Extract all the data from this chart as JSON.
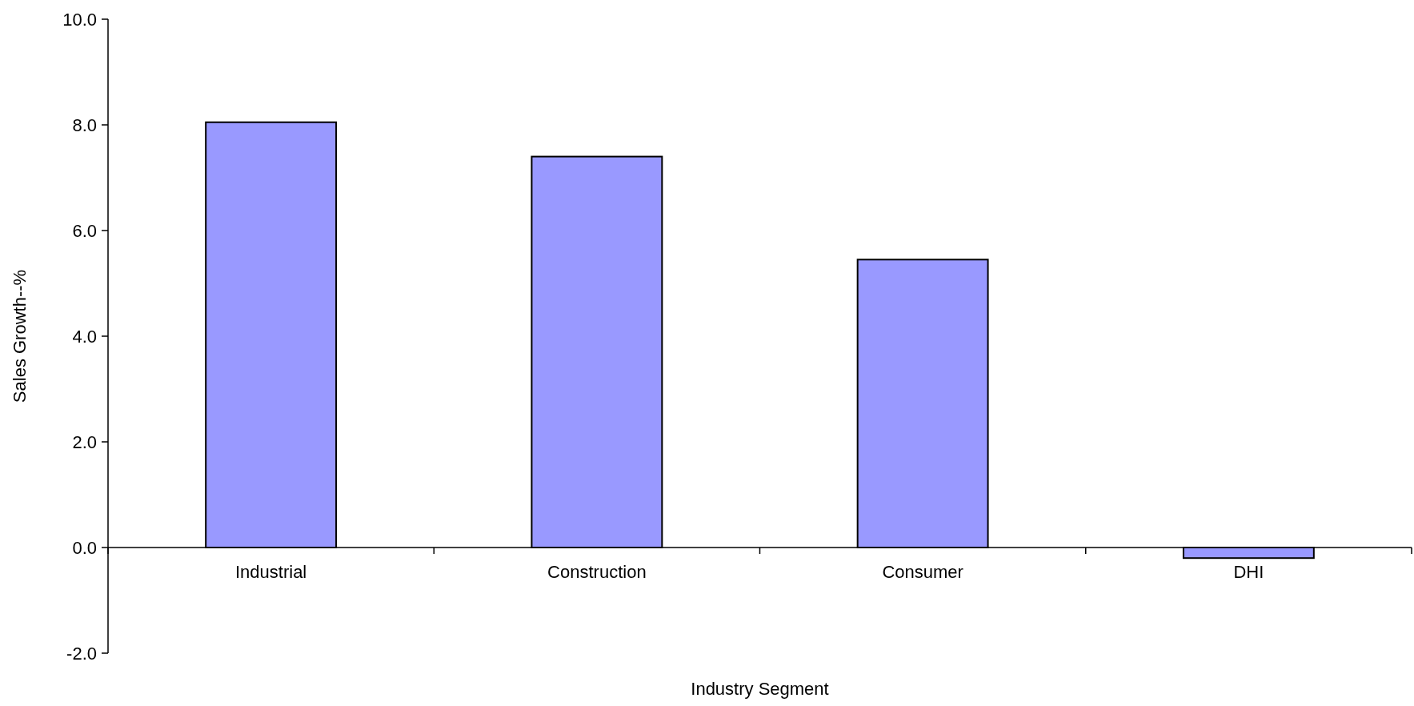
{
  "chart_data": {
    "type": "bar",
    "xlabel": "Industry Segment",
    "ylabel": "Sales Growth--%",
    "categories": [
      "Industrial",
      "Construction",
      "Consumer",
      "DHI"
    ],
    "values": [
      8.05,
      7.4,
      5.45,
      -0.2
    ],
    "color": "#9999ff",
    "ylim": [
      -2,
      10
    ],
    "yticks": [
      {
        "value": -2,
        "label": "-2.0"
      },
      {
        "value": 0,
        "label": "0.0"
      },
      {
        "value": 2,
        "label": "2.0"
      },
      {
        "value": 4,
        "label": "4.0"
      },
      {
        "value": 6,
        "label": "6.0"
      },
      {
        "value": 8,
        "label": "8.0"
      },
      {
        "value": 10,
        "label": "10.0"
      }
    ]
  }
}
